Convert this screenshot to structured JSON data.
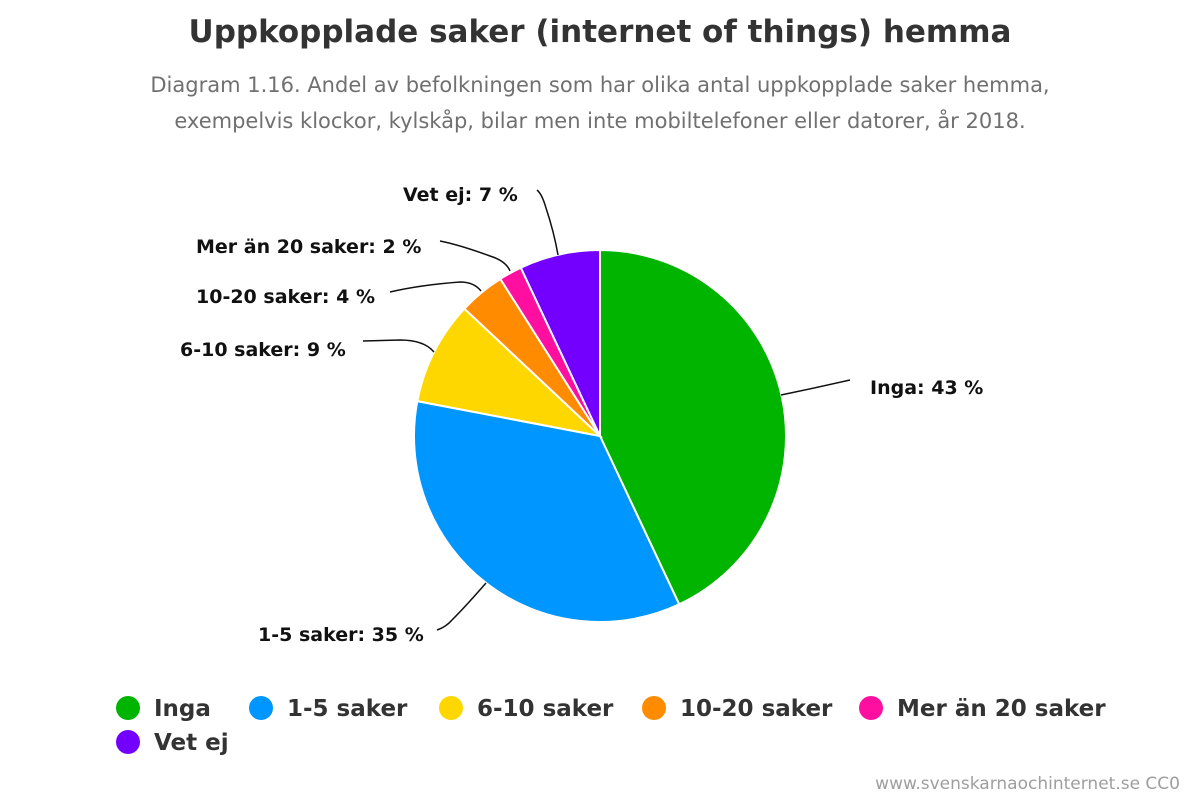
{
  "chart_data": {
    "type": "pie",
    "title": "Uppkopplade saker (internet of things) hemma",
    "subtitle": "Diagram 1.16. Andel av befolkningen som har olika antal uppkopplade saker hemma, exempelvis klockor, kylskåp, bilar men inte mobiltelefoner eller datorer, år 2018.",
    "slices": [
      {
        "name": "Inga",
        "value": 43,
        "label": "Inga: 43 %",
        "color": "#00b400"
      },
      {
        "name": "1-5 saker",
        "value": 35,
        "label": "1-5 saker: 35 %",
        "color": "#0096ff"
      },
      {
        "name": "6-10 saker",
        "value": 9,
        "label": "6-10 saker: 9 %",
        "color": "#ffd700"
      },
      {
        "name": "10-20 saker",
        "value": 4,
        "label": "10-20 saker: 4 %",
        "color": "#ff8c00"
      },
      {
        "name": "Mer än 20 saker",
        "value": 2,
        "label": "Mer än 20 saker: 2 %",
        "color": "#ff0fa0"
      },
      {
        "name": "Vet ej",
        "value": 7,
        "label": "Vet ej: 7 %",
        "color": "#7300ff"
      }
    ],
    "legend_position": "bottom"
  },
  "footer": {
    "credit": "www.svenskarnaochinternet.se CC0"
  }
}
